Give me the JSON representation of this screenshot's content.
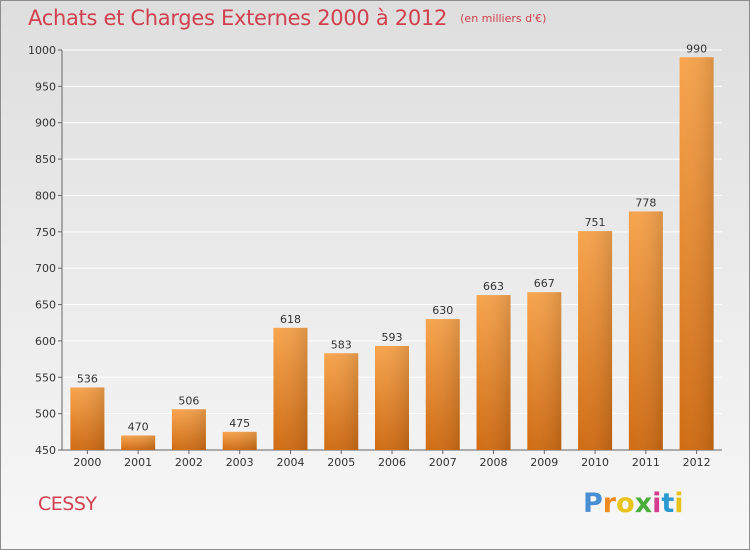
{
  "title": "Achats et Charges Externes 2000 à 2012",
  "subtitle": "(en milliers d'€)",
  "place": "CESSY",
  "logo": {
    "letters": [
      "P",
      "r",
      "o",
      "x",
      "i",
      "t",
      "i"
    ],
    "colors": [
      "#4a8fd4",
      "#f08a1c",
      "#e8c41a",
      "#49ad3a",
      "#d43d8f",
      "#2a9ad1",
      "#e8c41a"
    ]
  },
  "colors": {
    "title": "#d0404e",
    "bar_light": "#f7a44d",
    "bar_dark": "#d06c14",
    "grid": "#ffffff",
    "text": "#333333"
  },
  "chart_data": {
    "type": "bar",
    "categories": [
      "2000",
      "2001",
      "2002",
      "2003",
      "2004",
      "2005",
      "2006",
      "2007",
      "2008",
      "2009",
      "2010",
      "2011",
      "2012"
    ],
    "values": [
      536,
      470,
      506,
      475,
      618,
      583,
      593,
      630,
      663,
      667,
      751,
      778,
      990
    ],
    "ylim": [
      450,
      1000
    ],
    "yticks": [
      450,
      500,
      550,
      600,
      650,
      700,
      750,
      800,
      850,
      900,
      950,
      1000
    ],
    "grid": true,
    "xlabel": "",
    "ylabel": ""
  }
}
